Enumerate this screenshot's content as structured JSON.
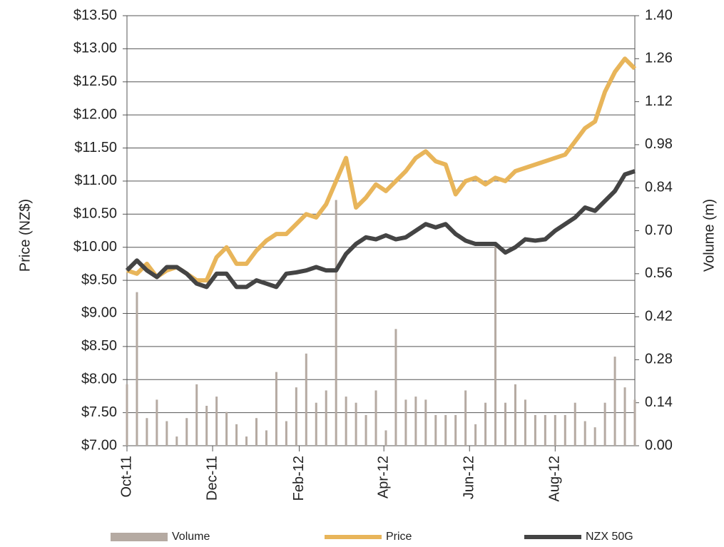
{
  "chart_data": {
    "type": "line",
    "ylabel": "Price (NZ$)",
    "y2label": "Volume (m)",
    "x": [
      0,
      1,
      2,
      3,
      4,
      5,
      6,
      7,
      8,
      9,
      10,
      11,
      12,
      13,
      14,
      15,
      16,
      17,
      18,
      19,
      20,
      21,
      22,
      23,
      24,
      25,
      26,
      27,
      28,
      29,
      30,
      31,
      32,
      33,
      34,
      35,
      36,
      37,
      38,
      39,
      40,
      41,
      42,
      43,
      44,
      45,
      46,
      47,
      48,
      49,
      50,
      51
    ],
    "xlim": [
      0,
      51
    ],
    "xticks": [
      {
        "value": 0,
        "label": "Oct-11"
      },
      {
        "value": 8.6,
        "label": "Dec-11"
      },
      {
        "value": 17.3,
        "label": "Feb-12"
      },
      {
        "value": 25.8,
        "label": "Apr-12"
      },
      {
        "value": 34.4,
        "label": "Jun-12"
      },
      {
        "value": 43,
        "label": "Aug-12"
      }
    ],
    "ylim": [
      7,
      13.5
    ],
    "yticks": [
      {
        "value": 7,
        "label": "$7.00"
      },
      {
        "value": 7.5,
        "label": "$7.50"
      },
      {
        "value": 8,
        "label": "$8.00"
      },
      {
        "value": 8.5,
        "label": "$8.50"
      },
      {
        "value": 9,
        "label": "$9.00"
      },
      {
        "value": 9.5,
        "label": "$9.50"
      },
      {
        "value": 10,
        "label": "$10.00"
      },
      {
        "value": 10.5,
        "label": "$10.50"
      },
      {
        "value": 11,
        "label": "$11.00"
      },
      {
        "value": 11.5,
        "label": "$11.50"
      },
      {
        "value": 12,
        "label": "$12.00"
      },
      {
        "value": 12.5,
        "label": "$12.50"
      },
      {
        "value": 13,
        "label": "$13.00"
      },
      {
        "value": 13.5,
        "label": "$13.50"
      }
    ],
    "y2lim": [
      0,
      1.4
    ],
    "y2ticks": [
      {
        "value": 0,
        "label": "0.00"
      },
      {
        "value": 0.14,
        "label": "0.14"
      },
      {
        "value": 0.28,
        "label": "0.28"
      },
      {
        "value": 0.42,
        "label": "0.42"
      },
      {
        "value": 0.56,
        "label": "0.56"
      },
      {
        "value": 0.7,
        "label": "0.70"
      },
      {
        "value": 0.84,
        "label": "0.84"
      },
      {
        "value": 0.98,
        "label": "0.98"
      },
      {
        "value": 1.12,
        "label": "1.12"
      },
      {
        "value": 1.26,
        "label": "1.26"
      },
      {
        "value": 1.4,
        "label": "1.40"
      }
    ],
    "grid": true,
    "legend": "bottom",
    "series": [
      {
        "name": "Volume",
        "color": "#b5aaa2",
        "axis": "y2",
        "kind": "bar",
        "values": [
          0.2,
          0.5,
          0.09,
          0.15,
          0.08,
          0.03,
          0.09,
          0.2,
          0.13,
          0.16,
          0.11,
          0.07,
          0.03,
          0.09,
          0.05,
          0.24,
          0.08,
          0.19,
          0.3,
          0.14,
          0.18,
          0.8,
          0.16,
          0.14,
          0.1,
          0.18,
          0.05,
          0.38,
          0.15,
          0.16,
          0.15,
          0.1,
          0.1,
          0.1,
          0.18,
          0.07,
          0.14,
          0.65,
          0.14,
          0.2,
          0.15,
          0.1,
          0.1,
          0.1,
          0.1,
          0.14,
          0.08,
          0.06,
          0.14,
          0.29,
          0.19,
          0.15
        ]
      },
      {
        "name": "Price",
        "color": "#e8b55a",
        "values": [
          9.65,
          9.6,
          9.75,
          9.55,
          9.65,
          9.7,
          9.6,
          9.5,
          9.5,
          9.85,
          10.0,
          9.75,
          9.75,
          9.95,
          10.1,
          10.2,
          10.2,
          10.35,
          10.5,
          10.45,
          10.65,
          11.0,
          11.35,
          10.6,
          10.75,
          10.95,
          10.85,
          11.0,
          11.15,
          11.35,
          11.45,
          11.3,
          11.25,
          10.8,
          11.0,
          11.05,
          10.95,
          11.05,
          11.0,
          11.15,
          11.2,
          11.25,
          11.3,
          11.35,
          11.4,
          11.6,
          11.8,
          11.9,
          12.35,
          12.65,
          12.85,
          12.7
        ]
      },
      {
        "name": "NZX 50G",
        "color": "#444444",
        "values": [
          9.65,
          9.8,
          9.65,
          9.55,
          9.7,
          9.7,
          9.6,
          9.45,
          9.4,
          9.6,
          9.6,
          9.4,
          9.4,
          9.5,
          9.45,
          9.4,
          9.6,
          9.62,
          9.65,
          9.7,
          9.65,
          9.65,
          9.9,
          10.05,
          10.15,
          10.12,
          10.18,
          10.12,
          10.15,
          10.25,
          10.35,
          10.3,
          10.35,
          10.2,
          10.1,
          10.05,
          10.05,
          10.05,
          9.92,
          10.0,
          10.12,
          10.1,
          10.12,
          10.25,
          10.35,
          10.45,
          10.6,
          10.55,
          10.7,
          10.85,
          11.1,
          11.15
        ]
      }
    ]
  }
}
